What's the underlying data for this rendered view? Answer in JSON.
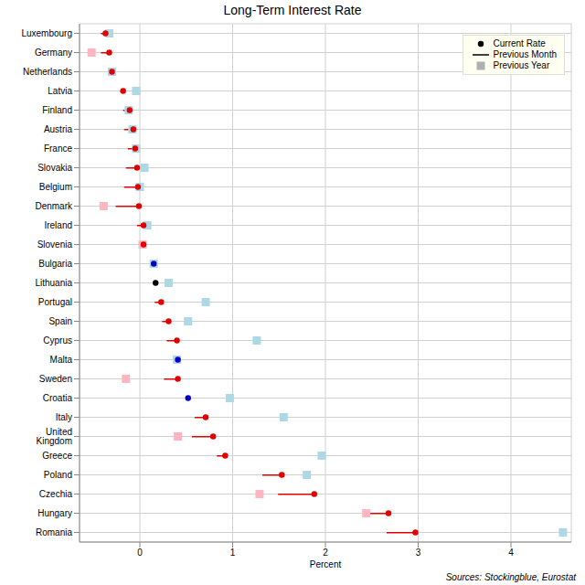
{
  "chart_data": {
    "type": "dot",
    "title": "Long-Term Interest Rate",
    "x_label": "Percent",
    "annotation": "Sources: Stockingblue, Eurostat",
    "orientation": "horizontal",
    "grid": true,
    "legend": "top right",
    "xlim": [
      -0.65,
      4.65
    ],
    "xticks": [
      0,
      1,
      2,
      3,
      4
    ],
    "categories": [
      "Luxembourg",
      "Germany",
      "Netherlands",
      "Latvia",
      "Finland",
      "Austria",
      "France",
      "Slovakia",
      "Belgium",
      "Denmark",
      "Ireland",
      "Slovenia",
      "Bulgaria",
      "Lithuania",
      "Portugal",
      "Spain",
      "Cyprus",
      "Malta",
      "Sweden",
      "Croatia",
      "Italy",
      "United Kingdom",
      "Greece",
      "Poland",
      "Czechia",
      "Hungary",
      "Romania"
    ],
    "series": [
      {
        "name": "Current Rate",
        "type": "scatter",
        "marker": "circle",
        "color": "#000000",
        "values": [
          -0.37,
          -0.33,
          -0.3,
          -0.18,
          -0.11,
          -0.07,
          -0.05,
          -0.03,
          -0.02,
          -0.01,
          0.04,
          0.04,
          0.15,
          0.17,
          0.23,
          0.31,
          0.4,
          0.41,
          0.41,
          0.52,
          0.71,
          0.79,
          0.92,
          1.53,
          1.88,
          2.68,
          2.97
        ],
        "colors": [
          "#e00000",
          "#e00000",
          "#e00000",
          "#e00000",
          "#e00000",
          "#e00000",
          "#e00000",
          "#e00000",
          "#e00000",
          "#e00000",
          "#e00000",
          "#e00000",
          "#0000cc",
          "#000000",
          "#e00000",
          "#e00000",
          "#e00000",
          "#0000cc",
          "#e00000",
          "#0000cc",
          "#e00000",
          "#e00000",
          "#e00000",
          "#e00000",
          "#e00000",
          "#e00000",
          "#e00000"
        ]
      },
      {
        "name": "Previous Month",
        "type": "line",
        "line_style": "solid",
        "color": "#000000",
        "values": [
          -0.42,
          -0.42,
          -0.34,
          -0.21,
          -0.18,
          -0.17,
          -0.13,
          -0.15,
          -0.17,
          -0.26,
          -0.03,
          0.02,
          0.16,
          0.17,
          0.16,
          0.24,
          0.29,
          0.42,
          0.26,
          0.53,
          0.59,
          0.56,
          0.83,
          1.32,
          1.49,
          2.44,
          2.66
        ],
        "colors": [
          "#e00000",
          "#e00000",
          "#e00000",
          "#e00000",
          "#e00000",
          "#e00000",
          "#e00000",
          "#e00000",
          "#e00000",
          "#e00000",
          "#e00000",
          "#e00000",
          "#0000cc",
          "#000000",
          "#e00000",
          "#e00000",
          "#e00000",
          "#0000cc",
          "#e00000",
          "#0000cc",
          "#e00000",
          "#e00000",
          "#e00000",
          "#e00000",
          "#e00000",
          "#e00000",
          "#e00000"
        ]
      },
      {
        "name": "Previous Year",
        "type": "scatter",
        "marker": "square",
        "color": "#b0b0b0",
        "values": [
          -0.33,
          -0.52,
          -0.3,
          -0.04,
          -0.12,
          -0.08,
          -0.04,
          0.05,
          0.0,
          -0.39,
          0.08,
          0.03,
          0.15,
          0.31,
          0.71,
          0.52,
          1.26,
          0.4,
          -0.15,
          0.97,
          1.55,
          0.41,
          1.96,
          1.8,
          1.29,
          2.44,
          4.56
        ],
        "colors": [
          "#add8e6",
          "#ffb6c1",
          "#add8e6",
          "#add8e6",
          "#add8e6",
          "#add8e6",
          "#add8e6",
          "#add8e6",
          "#add8e6",
          "#ffb6c1",
          "#add8e6",
          "#ffb6c1",
          "#add8e6",
          "#add8e6",
          "#add8e6",
          "#add8e6",
          "#add8e6",
          "#add8e6",
          "#ffb6c1",
          "#add8e6",
          "#add8e6",
          "#ffb6c1",
          "#add8e6",
          "#add8e6",
          "#ffb6c1",
          "#ffb6c1",
          "#add8e6"
        ]
      }
    ]
  }
}
